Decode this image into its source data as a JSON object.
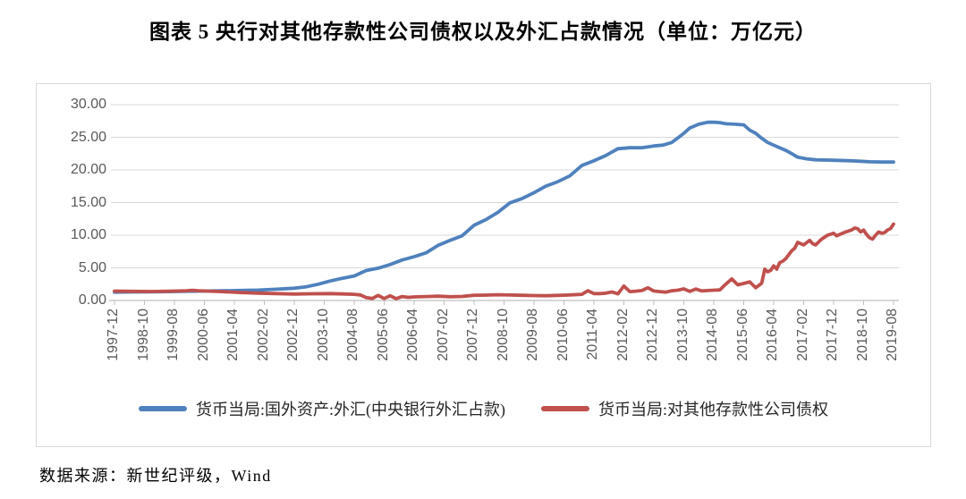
{
  "title": "图表 5  央行对其他存款性公司债权以及外汇占款情况（单位：万亿元）",
  "source_note": "数据来源：新世纪评级，Wind",
  "colors": {
    "series_fx_blue": "#4F81BD",
    "series_claims_red": "#C0504D",
    "gridline": "#d9d9d9",
    "axis": "#bfbfbf",
    "tick_text": "#595959"
  },
  "chart_data": {
    "type": "line",
    "title": "央行对其他存款性公司债权以及外汇占款情况",
    "unit": "万亿元",
    "grid": "horizontal-on",
    "legend_position": "bottom",
    "y_axis": {
      "min": 0,
      "max": 30,
      "tick_labels": [
        "30.00",
        "25.00",
        "20.00",
        "15.00",
        "10.00",
        "5.00",
        "0.00"
      ]
    },
    "x_axis": {
      "note": "monthly data, ticks every 10 months",
      "start_month": "1997-12",
      "end_month": "2019-08",
      "months_total": 260,
      "tick_labels": [
        "1997-12",
        "1998-10",
        "1999-08",
        "2000-06",
        "2001-04",
        "2002-02",
        "2002-12",
        "2003-10",
        "2004-08",
        "2005-06",
        "2006-04",
        "2007-02",
        "2007-12",
        "2008-10",
        "2009-08",
        "2010-06",
        "2011-04",
        "2012-02",
        "2012-12",
        "2013-10",
        "2014-08",
        "2015-06",
        "2016-04",
        "2017-02",
        "2017-12",
        "2018-10",
        "2019-08"
      ]
    },
    "series": [
      {
        "name": "货币当局:国外资产:外汇(中央银行外汇占款)",
        "color": "#4F81BD",
        "points_format": "[months_since_1997-12, value_trillion_yuan]",
        "points": [
          [
            0,
            1.28
          ],
          [
            6,
            1.3
          ],
          [
            12,
            1.31
          ],
          [
            18,
            1.36
          ],
          [
            24,
            1.41
          ],
          [
            30,
            1.44
          ],
          [
            36,
            1.48
          ],
          [
            42,
            1.53
          ],
          [
            48,
            1.59
          ],
          [
            54,
            1.72
          ],
          [
            60,
            1.88
          ],
          [
            64,
            2.1
          ],
          [
            68,
            2.5
          ],
          [
            72,
            2.98
          ],
          [
            76,
            3.4
          ],
          [
            80,
            3.75
          ],
          [
            84,
            4.59
          ],
          [
            88,
            4.95
          ],
          [
            92,
            5.5
          ],
          [
            96,
            6.21
          ],
          [
            100,
            6.7
          ],
          [
            104,
            7.3
          ],
          [
            108,
            8.44
          ],
          [
            112,
            9.2
          ],
          [
            116,
            9.9
          ],
          [
            120,
            11.52
          ],
          [
            124,
            12.4
          ],
          [
            128,
            13.5
          ],
          [
            132,
            14.96
          ],
          [
            136,
            15.6
          ],
          [
            140,
            16.5
          ],
          [
            144,
            17.52
          ],
          [
            148,
            18.2
          ],
          [
            152,
            19.1
          ],
          [
            156,
            20.68
          ],
          [
            160,
            21.4
          ],
          [
            164,
            22.2
          ],
          [
            168,
            23.24
          ],
          [
            172,
            23.4
          ],
          [
            176,
            23.4
          ],
          [
            180,
            23.67
          ],
          [
            183,
            23.8
          ],
          [
            186,
            24.2
          ],
          [
            188,
            24.9
          ],
          [
            190,
            25.6
          ],
          [
            192,
            26.43
          ],
          [
            195,
            27.0
          ],
          [
            198,
            27.3
          ],
          [
            200,
            27.3
          ],
          [
            202,
            27.25
          ],
          [
            204,
            27.07
          ],
          [
            207,
            27.0
          ],
          [
            210,
            26.9
          ],
          [
            212,
            26.1
          ],
          [
            214,
            25.6
          ],
          [
            216,
            24.85
          ],
          [
            218,
            24.2
          ],
          [
            220,
            23.8
          ],
          [
            222,
            23.4
          ],
          [
            224,
            23.0
          ],
          [
            226,
            22.5
          ],
          [
            228,
            21.94
          ],
          [
            231,
            21.7
          ],
          [
            234,
            21.55
          ],
          [
            240,
            21.48
          ],
          [
            246,
            21.4
          ],
          [
            252,
            21.25
          ],
          [
            256,
            21.2
          ],
          [
            260,
            21.2
          ]
        ]
      },
      {
        "name": "货币当局:对其他存款性公司债权",
        "color": "#C0504D",
        "points_format": "[months_since_1997-12, value_trillion_yuan]",
        "points": [
          [
            0,
            1.44
          ],
          [
            6,
            1.4
          ],
          [
            12,
            1.37
          ],
          [
            18,
            1.43
          ],
          [
            24,
            1.5
          ],
          [
            26,
            1.56
          ],
          [
            28,
            1.5
          ],
          [
            32,
            1.42
          ],
          [
            36,
            1.35
          ],
          [
            42,
            1.22
          ],
          [
            48,
            1.13
          ],
          [
            54,
            1.06
          ],
          [
            60,
            0.99
          ],
          [
            66,
            1.03
          ],
          [
            72,
            1.06
          ],
          [
            76,
            1.0
          ],
          [
            80,
            0.95
          ],
          [
            82,
            0.85
          ],
          [
            84,
            0.45
          ],
          [
            86,
            0.3
          ],
          [
            88,
            0.78
          ],
          [
            90,
            0.3
          ],
          [
            92,
            0.72
          ],
          [
            94,
            0.28
          ],
          [
            96,
            0.6
          ],
          [
            98,
            0.48
          ],
          [
            100,
            0.55
          ],
          [
            104,
            0.6
          ],
          [
            108,
            0.66
          ],
          [
            112,
            0.58
          ],
          [
            116,
            0.62
          ],
          [
            120,
            0.79
          ],
          [
            124,
            0.82
          ],
          [
            128,
            0.88
          ],
          [
            132,
            0.84
          ],
          [
            136,
            0.8
          ],
          [
            140,
            0.76
          ],
          [
            144,
            0.72
          ],
          [
            148,
            0.78
          ],
          [
            152,
            0.85
          ],
          [
            156,
            0.95
          ],
          [
            158,
            1.5
          ],
          [
            160,
            1.05
          ],
          [
            162,
            1.06
          ],
          [
            164,
            1.12
          ],
          [
            166,
            1.3
          ],
          [
            168,
            1.02
          ],
          [
            170,
            2.2
          ],
          [
            172,
            1.35
          ],
          [
            174,
            1.42
          ],
          [
            176,
            1.52
          ],
          [
            178,
            1.95
          ],
          [
            180,
            1.45
          ],
          [
            182,
            1.36
          ],
          [
            184,
            1.28
          ],
          [
            186,
            1.5
          ],
          [
            188,
            1.58
          ],
          [
            190,
            1.78
          ],
          [
            192,
            1.38
          ],
          [
            194,
            1.76
          ],
          [
            196,
            1.46
          ],
          [
            198,
            1.52
          ],
          [
            200,
            1.58
          ],
          [
            202,
            1.62
          ],
          [
            204,
            2.5
          ],
          [
            206,
            3.3
          ],
          [
            208,
            2.4
          ],
          [
            210,
            2.6
          ],
          [
            212,
            2.85
          ],
          [
            214,
            1.95
          ],
          [
            215,
            2.3
          ],
          [
            216,
            2.66
          ],
          [
            217,
            4.8
          ],
          [
            218,
            4.4
          ],
          [
            219,
            4.6
          ],
          [
            220,
            5.3
          ],
          [
            221,
            4.8
          ],
          [
            222,
            5.8
          ],
          [
            223,
            6.0
          ],
          [
            224,
            6.4
          ],
          [
            226,
            7.6
          ],
          [
            227,
            8.0
          ],
          [
            228,
            8.9
          ],
          [
            230,
            8.5
          ],
          [
            232,
            9.2
          ],
          [
            233,
            8.7
          ],
          [
            234,
            8.5
          ],
          [
            236,
            9.4
          ],
          [
            238,
            10.0
          ],
          [
            240,
            10.3
          ],
          [
            241,
            9.9
          ],
          [
            242,
            10.1
          ],
          [
            244,
            10.5
          ],
          [
            246,
            10.8
          ],
          [
            247,
            11.1
          ],
          [
            248,
            11.0
          ],
          [
            249,
            10.5
          ],
          [
            250,
            10.8
          ],
          [
            251,
            10.1
          ],
          [
            252,
            9.6
          ],
          [
            253,
            9.4
          ],
          [
            254,
            10.0
          ],
          [
            255,
            10.5
          ],
          [
            256,
            10.3
          ],
          [
            257,
            10.4
          ],
          [
            258,
            10.8
          ],
          [
            259,
            11.0
          ],
          [
            260,
            11.7
          ]
        ]
      }
    ]
  }
}
